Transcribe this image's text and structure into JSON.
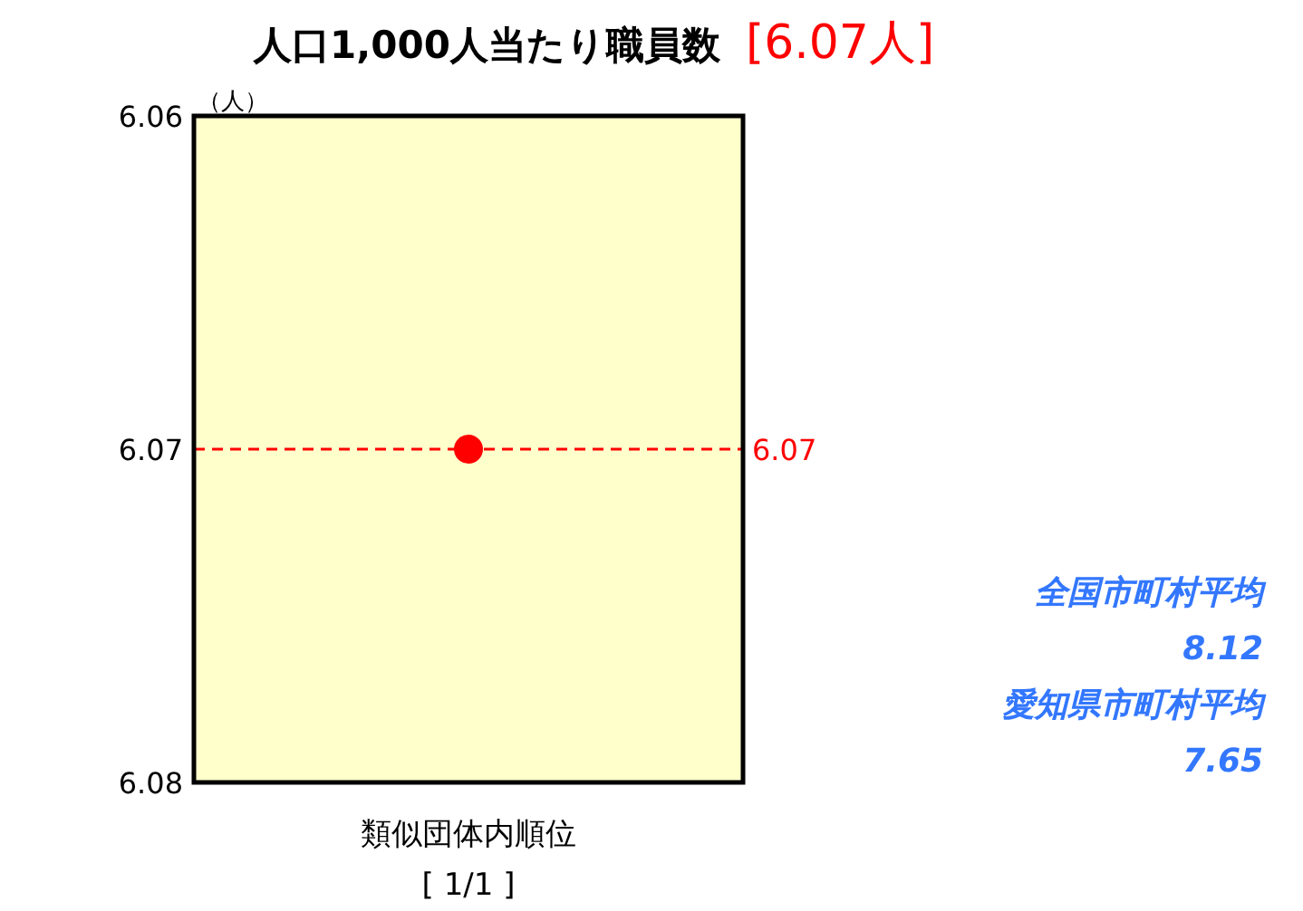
{
  "chart_data": {
    "type": "scatter",
    "title": "人口1,000人当たり職員数",
    "subtitle": "[6.07人]",
    "ylabel": "（人）",
    "xlabel": "類似団体内順位",
    "categories": [
      null
    ],
    "series": [
      {
        "color": "#ff0000",
        "values": [
          6.07
        ]
      }
    ],
    "ylim": [
      6.08,
      6.06
    ],
    "yticks": [
      6.06,
      6.07,
      6.08
    ],
    "marker": "circle",
    "ref_lines": [
      {
        "axis": "y",
        "value": 6.07,
        "label": "6.07",
        "color": "#ff0000",
        "line_style": "dashed"
      }
    ],
    "annotations": [
      "[ 1/1 ]",
      "全国市町村平均",
      "8.12",
      "愛知県市町村平均",
      "7.65"
    ]
  }
}
